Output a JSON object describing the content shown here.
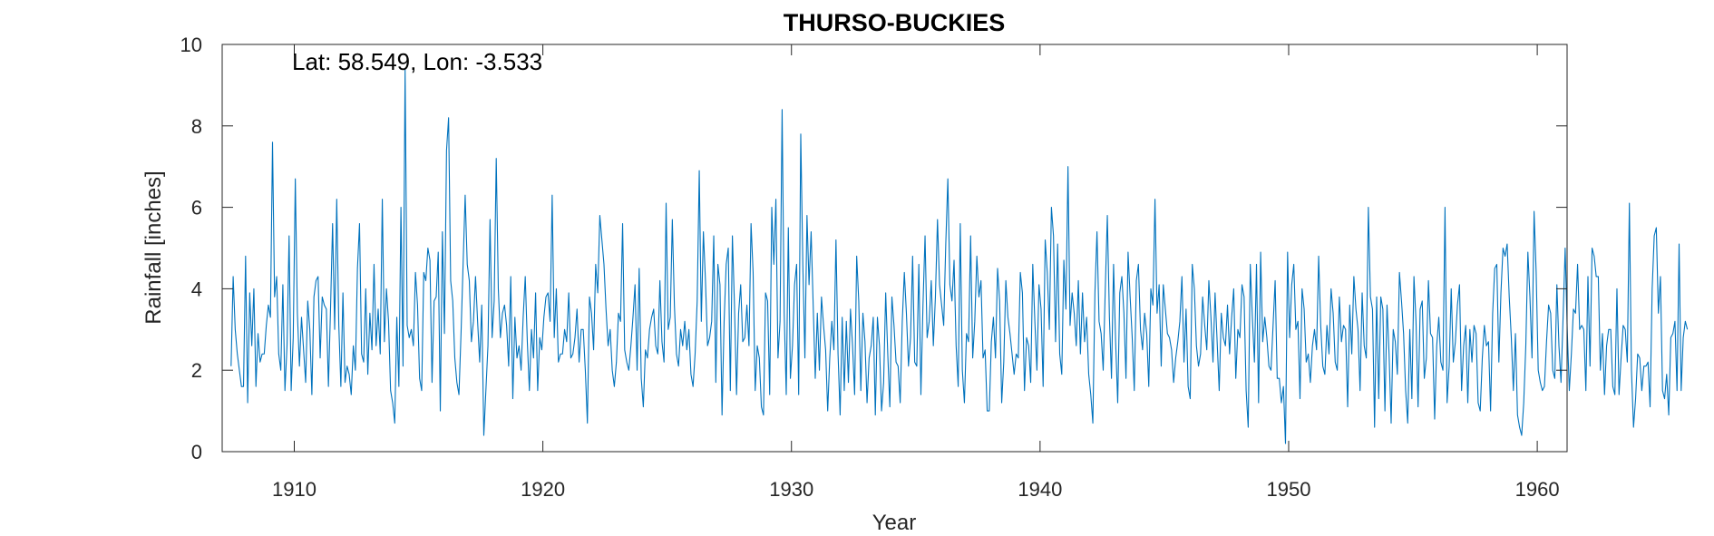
{
  "chart_data": {
    "type": "line",
    "title": "THURSO-BUCKIES",
    "xlabel": "Year",
    "ylabel": "Rainfall [inches]",
    "annotation": "Lat: 58.549, Lon: -3.533",
    "xlim": [
      1907.1,
      1961.2
    ],
    "ylim": [
      0,
      10
    ],
    "xticks": [
      1910,
      1920,
      1930,
      1940,
      1950,
      1960
    ],
    "yticks": [
      0,
      2,
      4,
      6,
      8,
      10
    ],
    "grid": false,
    "series_color": "#0072BD",
    "series": [
      {
        "x_start": 1907.458,
        "x_step": 0.08333,
        "values": [
          2.1,
          4.3,
          3.0,
          2.4,
          2.0,
          1.6,
          1.6,
          4.8,
          1.2,
          3.9,
          2.6,
          4.0,
          1.6,
          2.9,
          2.2,
          2.4,
          2.4,
          3.1,
          3.6,
          3.3,
          7.6,
          3.8,
          4.3,
          2.4,
          2.0,
          4.1,
          1.5,
          2.6,
          5.3,
          1.5,
          2.8,
          6.7,
          3.4,
          2.1,
          3.3,
          2.5,
          1.7,
          3.7,
          3.0,
          1.4,
          3.8,
          4.2,
          4.3,
          2.3,
          3.8,
          3.6,
          3.5,
          1.6,
          3.5,
          5.6,
          3.0,
          6.2,
          3.1,
          1.6,
          3.9,
          1.7,
          2.1,
          1.9,
          1.4,
          2.6,
          2.0,
          4.5,
          5.6,
          2.4,
          2.2,
          4.0,
          1.9,
          3.4,
          2.5,
          4.6,
          2.6,
          3.5,
          2.4,
          6.2,
          2.7,
          4.0,
          3.2,
          1.5,
          1.2,
          0.7,
          3.3,
          1.6,
          6.0,
          2.1,
          9.4,
          3.1,
          2.8,
          3.0,
          2.6,
          4.4,
          3.6,
          1.8,
          1.5,
          4.4,
          4.2,
          5.0,
          4.7,
          1.7,
          3.7,
          3.8,
          4.9,
          1.0,
          5.4,
          2.9,
          7.4,
          8.2,
          4.2,
          3.7,
          2.3,
          1.7,
          1.4,
          2.9,
          4.6,
          6.3,
          4.6,
          4.2,
          2.7,
          3.2,
          4.3,
          3.2,
          2.2,
          3.6,
          0.4,
          1.5,
          2.6,
          5.7,
          2.8,
          3.7,
          7.2,
          4.0,
          2.8,
          3.4,
          3.6,
          3.1,
          2.1,
          4.3,
          1.3,
          3.3,
          2.3,
          2.6,
          2.0,
          3.3,
          4.3,
          2.7,
          1.5,
          3.0,
          2.3,
          3.9,
          1.5,
          2.8,
          2.5,
          3.3,
          3.8,
          3.9,
          3.2,
          6.3,
          2.8,
          4.0,
          2.2,
          2.4,
          2.4,
          3.0,
          2.7,
          3.9,
          2.3,
          2.4,
          2.8,
          3.5,
          2.2,
          3.0,
          3.0,
          2.0,
          0.7,
          3.8,
          3.4,
          2.5,
          4.6,
          3.9,
          5.8,
          5.2,
          4.6,
          3.5,
          2.6,
          3.0,
          2.0,
          1.6,
          2.2,
          3.4,
          3.2,
          5.6,
          2.5,
          2.2,
          2.0,
          2.6,
          3.3,
          4.1,
          2.0,
          4.5,
          1.8,
          1.1,
          2.5,
          2.3,
          3.0,
          3.3,
          3.5,
          2.6,
          2.4,
          4.2,
          2.7,
          2.2,
          6.1,
          3.0,
          3.3,
          5.7,
          3.6,
          2.4,
          2.1,
          3.0,
          2.6,
          3.2,
          2.5,
          3.0,
          1.9,
          1.6,
          2.4,
          3.7,
          6.9,
          3.2,
          5.4,
          4.2,
          2.6,
          2.8,
          3.2,
          5.3,
          1.7,
          4.6,
          4.1,
          0.9,
          3.2,
          4.6,
          5.0,
          1.5,
          5.3,
          3.6,
          1.4,
          3.4,
          4.1,
          2.7,
          2.8,
          3.6,
          2.6,
          5.6,
          4.4,
          1.5,
          2.6,
          2.3,
          1.1,
          0.9,
          3.9,
          3.7,
          1.4,
          6.0,
          4.6,
          6.2,
          2.3,
          3.2,
          8.4,
          3.4,
          1.4,
          5.5,
          1.8,
          2.6,
          4.1,
          4.6,
          1.4,
          7.8,
          4.6,
          2.3,
          5.8,
          4.1,
          5.4,
          3.6,
          1.8,
          3.4,
          2.0,
          3.8,
          3.1,
          2.5,
          1.0,
          2.3,
          3.2,
          2.5,
          5.2,
          2.4,
          0.9,
          3.3,
          1.5,
          3.2,
          1.7,
          3.5,
          2.6,
          1.4,
          4.8,
          3.7,
          1.5,
          3.4,
          2.7,
          1.2,
          2.3,
          2.6,
          3.3,
          0.9,
          3.3,
          2.6,
          1.0,
          1.7,
          3.9,
          2.4,
          1.1,
          3.8,
          3.1,
          2.2,
          2.1,
          1.2,
          3.2,
          4.4,
          3.4,
          2.1,
          2.8,
          4.8,
          2.2,
          2.1,
          4.6,
          1.4,
          3.6,
          5.3,
          2.8,
          3.2,
          4.2,
          2.6,
          3.8,
          5.7,
          4.1,
          3.6,
          3.1,
          5.1,
          6.7,
          4.1,
          3.7,
          4.7,
          2.6,
          1.6,
          5.6,
          2.0,
          1.2,
          2.9,
          2.7,
          5.3,
          2.3,
          3.2,
          4.8,
          3.8,
          4.2,
          2.3,
          2.5,
          1.0,
          1.0,
          2.7,
          3.3,
          2.3,
          4.5,
          3.7,
          1.2,
          2.2,
          4.2,
          3.3,
          2.9,
          2.4,
          1.9,
          2.4,
          2.3,
          4.4,
          3.9,
          1.5,
          2.8,
          2.6,
          1.7,
          4.6,
          3.2,
          2.0,
          4.1,
          3.5,
          1.6,
          5.2,
          4.4,
          3.0,
          6.0,
          5.3,
          2.7,
          5.1,
          2.4,
          1.9,
          4.7,
          3.5,
          7.0,
          3.1,
          3.9,
          3.4,
          2.6,
          4.2,
          2.4,
          3.9,
          2.7,
          3.3,
          1.9,
          1.4,
          0.7,
          3.9,
          5.4,
          3.2,
          2.9,
          2.0,
          4.0,
          5.8,
          3.3,
          1.8,
          4.6,
          2.7,
          1.2,
          3.9,
          4.3,
          3.4,
          1.8,
          4.9,
          3.8,
          2.8,
          1.5,
          4.2,
          4.6,
          3.0,
          2.5,
          3.4,
          2.9,
          1.6,
          4.0,
          3.6,
          6.2,
          3.4,
          4.1,
          2.1,
          4.1,
          3.5,
          2.9,
          2.8,
          2.5,
          1.7,
          2.3,
          2.7,
          3.2,
          4.3,
          2.2,
          3.5,
          1.6,
          1.3,
          4.6,
          4.0,
          2.6,
          2.1,
          2.4,
          3.8,
          3.1,
          2.5,
          4.2,
          3.3,
          2.2,
          3.9,
          2.7,
          1.5,
          3.4,
          2.8,
          2.6,
          3.6,
          2.4,
          3.3,
          4.0,
          1.8,
          3.0,
          2.8,
          4.1,
          3.8,
          1.5,
          0.6,
          4.6,
          3.3,
          2.2,
          4.6,
          1.2,
          4.9,
          2.7,
          3.3,
          2.8,
          2.1,
          2.0,
          3.1,
          4.2,
          1.8,
          1.8,
          1.2,
          1.6,
          0.2,
          4.9,
          2.8,
          4.1,
          4.6,
          3.0,
          3.2,
          1.3,
          4.0,
          3.5,
          2.2,
          2.4,
          1.7,
          2.6,
          3.0,
          2.5,
          4.8,
          3.1,
          2.1,
          1.9,
          3.1,
          2.4,
          4.0,
          3.4,
          2.2,
          2.0,
          3.8,
          2.7,
          3.1,
          3.0,
          1.1,
          3.6,
          2.4,
          4.3,
          3.5,
          3.0,
          1.5,
          3.9,
          2.6,
          2.3,
          6.0,
          3.8,
          3.5,
          0.6,
          3.8,
          1.3,
          3.8,
          3.5,
          1.0,
          3.6,
          2.4,
          0.7,
          3.0,
          2.7,
          1.9,
          4.4,
          3.7,
          2.9,
          1.5,
          0.7,
          3.0,
          1.3,
          4.3,
          3.2,
          1.1,
          3.5,
          3.7,
          1.8,
          2.3,
          4.2,
          2.9,
          2.8,
          0.8,
          2.6,
          3.3,
          2.2,
          2.0,
          6.0,
          1.2,
          2.1,
          4.0,
          2.2,
          2.7,
          3.6,
          4.1,
          1.5,
          2.6,
          3.1,
          1.2,
          3.0,
          2.2,
          3.1,
          2.9,
          1.2,
          1.0,
          2.3,
          3.1,
          2.6,
          2.7,
          1.0,
          3.4,
          4.5,
          4.6,
          2.2,
          3.9,
          5.0,
          4.8,
          5.1,
          3.8,
          2.8,
          1.5,
          2.9,
          0.9,
          0.6,
          0.4,
          1.2,
          2.6,
          4.9,
          3.8,
          2.3,
          5.9,
          4.4,
          2.0,
          1.7,
          1.5,
          1.6,
          2.7,
          3.6,
          3.4,
          2.0,
          1.8,
          4.1,
          2.6,
          1.7,
          3.3,
          5.0,
          3.0,
          1.5,
          2.4,
          3.5,
          3.4,
          4.6,
          3.0,
          3.1,
          3.0,
          1.5,
          4.3,
          2.1,
          5.0,
          4.8,
          4.3,
          4.3,
          2.0,
          2.9,
          1.4,
          2.6,
          3.0,
          3.0,
          1.6,
          1.4,
          4.0,
          1.4,
          2.3,
          3.1,
          3.0,
          2.2,
          6.1,
          2.0,
          0.6,
          1.3,
          2.4,
          2.3,
          1.5,
          2.1,
          2.1,
          2.2,
          1.1,
          4.0,
          5.3,
          5.5,
          3.4,
          4.3,
          1.5,
          1.3,
          1.9,
          0.9,
          2.8,
          2.9,
          3.2,
          1.5,
          5.1,
          1.5,
          2.8,
          3.2,
          3.0
        ]
      }
    ]
  }
}
